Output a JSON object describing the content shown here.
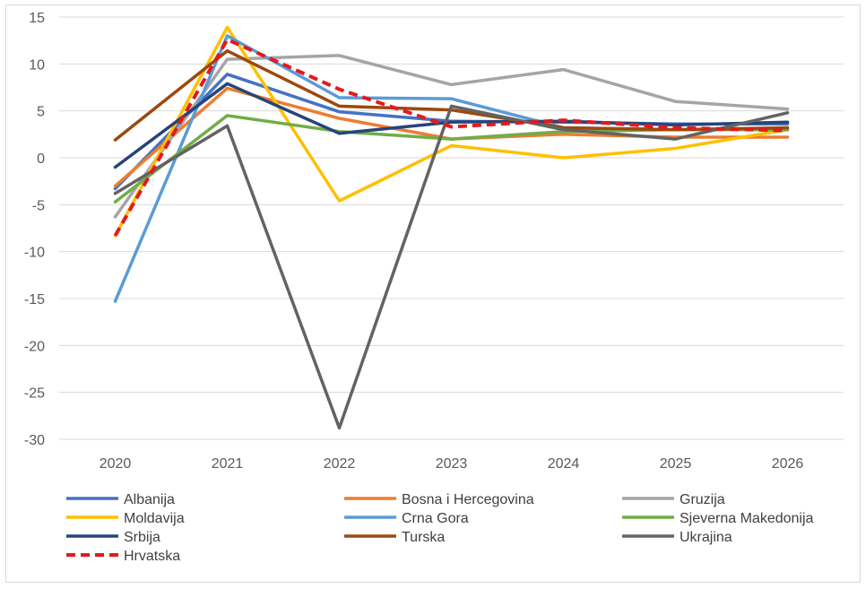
{
  "chart_data": {
    "type": "line",
    "title": "",
    "xlabel": "",
    "ylabel": "",
    "x": [
      "2020",
      "2021",
      "2022",
      "2023",
      "2024",
      "2025",
      "2026"
    ],
    "ylim": [
      -30,
      15
    ],
    "yticks": [
      15,
      10,
      5,
      0,
      -5,
      -10,
      -15,
      -20,
      -25,
      -30
    ],
    "grid": "horizontal",
    "legend_position": "bottom",
    "series": [
      {
        "name": "Albanija",
        "color": "#4472C4",
        "dashed": false,
        "values": [
          -3.3,
          8.9,
          4.9,
          3.9,
          3.8,
          3.6,
          3.6
        ]
      },
      {
        "name": "Bosna i Hercegovina",
        "color": "#ED7D31",
        "dashed": false,
        "values": [
          -3.0,
          7.4,
          4.2,
          2.0,
          2.5,
          2.2,
          2.2
        ]
      },
      {
        "name": "Gruzija",
        "color": "#A5A5A5",
        "dashed": false,
        "values": [
          -6.3,
          10.5,
          10.9,
          7.8,
          9.4,
          6.0,
          5.2
        ]
      },
      {
        "name": "Moldavija",
        "color": "#FFC000",
        "dashed": false,
        "values": [
          -8.3,
          13.9,
          -4.6,
          1.3,
          0.0,
          1.0,
          3.0
        ]
      },
      {
        "name": "Crna Gora",
        "color": "#5B9BD5",
        "dashed": false,
        "values": [
          -15.3,
          13.0,
          6.4,
          6.3,
          3.2,
          3.0,
          3.0
        ]
      },
      {
        "name": "Sjeverna Makedonija",
        "color": "#70AD47",
        "dashed": false,
        "values": [
          -4.7,
          4.5,
          2.8,
          2.0,
          2.8,
          3.0,
          3.0
        ]
      },
      {
        "name": "Srbija",
        "color": "#264478",
        "dashed": false,
        "values": [
          -1.0,
          7.9,
          2.6,
          3.8,
          3.9,
          3.5,
          3.8
        ]
      },
      {
        "name": "Turska",
        "color": "#9E480E",
        "dashed": false,
        "values": [
          1.9,
          11.4,
          5.5,
          5.1,
          3.2,
          3.0,
          3.2
        ]
      },
      {
        "name": "Ukrajina",
        "color": "#636363",
        "dashed": false,
        "values": [
          -3.8,
          3.4,
          -28.8,
          5.5,
          3.0,
          2.0,
          4.8
        ]
      },
      {
        "name": "Hrvatska",
        "color": "#E31A1C",
        "dashed": true,
        "values": [
          -8.3,
          12.6,
          7.3,
          3.3,
          4.0,
          3.2,
          2.9
        ]
      }
    ]
  }
}
